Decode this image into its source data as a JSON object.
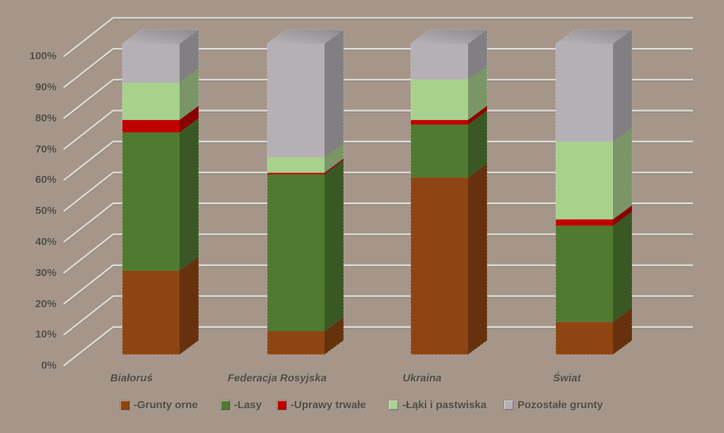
{
  "chart_data": {
    "type": "bar",
    "variant": "3d-100-percent-stacked-column",
    "categories": [
      "Białoruś",
      "Federacja Rosyjska",
      "Ukraina",
      "Świat"
    ],
    "series": [
      {
        "name": "-Grunty orne",
        "color": "#8e4513",
        "values": [
          27,
          7.5,
          57,
          10.5
        ]
      },
      {
        "name": "-Lasy",
        "color": "#517a31",
        "values": [
          44.5,
          50.5,
          17,
          31
        ]
      },
      {
        "name": "-Uprawy trwałe",
        "color": "#c00000",
        "values": [
          4,
          0.5,
          1.5,
          2
        ]
      },
      {
        "name": "-Łąki i pastwiska",
        "color": "#a9d18e",
        "values": [
          12,
          5,
          13,
          25
        ]
      },
      {
        "name": "Pozostałe grunty",
        "color": "#b5b0b5",
        "values": [
          12.5,
          36.5,
          11.5,
          31.5
        ]
      }
    ],
    "y_axis": {
      "unit": "%",
      "min": 0,
      "max": 100,
      "tick_step": 10,
      "ticks": [
        "0%",
        "10%",
        "20%",
        "30%",
        "40%",
        "50%",
        "60%",
        "70%",
        "80%",
        "90%",
        "100%"
      ]
    },
    "legend": {
      "position": "bottom"
    },
    "grid": true,
    "background_color": "#a59689",
    "gridline_color": "#e4e1dc",
    "gridline_shadow_color": "#7e7a73",
    "text_color": "#4e4a43"
  }
}
